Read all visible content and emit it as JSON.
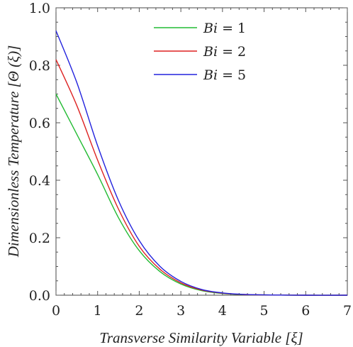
{
  "chart_data": {
    "type": "line",
    "xlabel": "Transverse Similarity Variable [ξ]",
    "ylabel": "Dimensionless Temperature [Θ (ξ)]",
    "xlim": [
      0,
      7
    ],
    "ylim": [
      0,
      1
    ],
    "x_ticks": [
      "0",
      "1",
      "2",
      "3",
      "4",
      "5",
      "6",
      "7"
    ],
    "y_ticks": [
      "0.0",
      "0.2",
      "0.4",
      "0.6",
      "0.8",
      "1.0"
    ],
    "legend_position": "top-right",
    "grid": false,
    "x": [
      0,
      0.5,
      1,
      1.5,
      2,
      2.5,
      3,
      3.5,
      4,
      4.5,
      5,
      6,
      7
    ],
    "series": [
      {
        "name": "Bi = 1",
        "name_parts": {
          "var": "Bi",
          "rest": " = 1"
        },
        "color": "#22bb33",
        "values": [
          0.7,
          0.56,
          0.42,
          0.27,
          0.155,
          0.082,
          0.039,
          0.016,
          0.006,
          0.002,
          0.001,
          0.0,
          0.0
        ]
      },
      {
        "name": "Bi = 2",
        "name_parts": {
          "var": "Bi",
          "rest": " = 2"
        },
        "color": "#dd2222",
        "values": [
          0.82,
          0.66,
          0.47,
          0.3,
          0.17,
          0.09,
          0.043,
          0.018,
          0.007,
          0.0025,
          0.001,
          0.0,
          0.0
        ]
      },
      {
        "name": "Bi = 5",
        "name_parts": {
          "var": "Bi",
          "rest": " = 5"
        },
        "color": "#2222dd",
        "values": [
          0.92,
          0.74,
          0.52,
          0.33,
          0.19,
          0.1,
          0.048,
          0.02,
          0.008,
          0.003,
          0.001,
          0.0,
          0.0
        ]
      }
    ]
  }
}
